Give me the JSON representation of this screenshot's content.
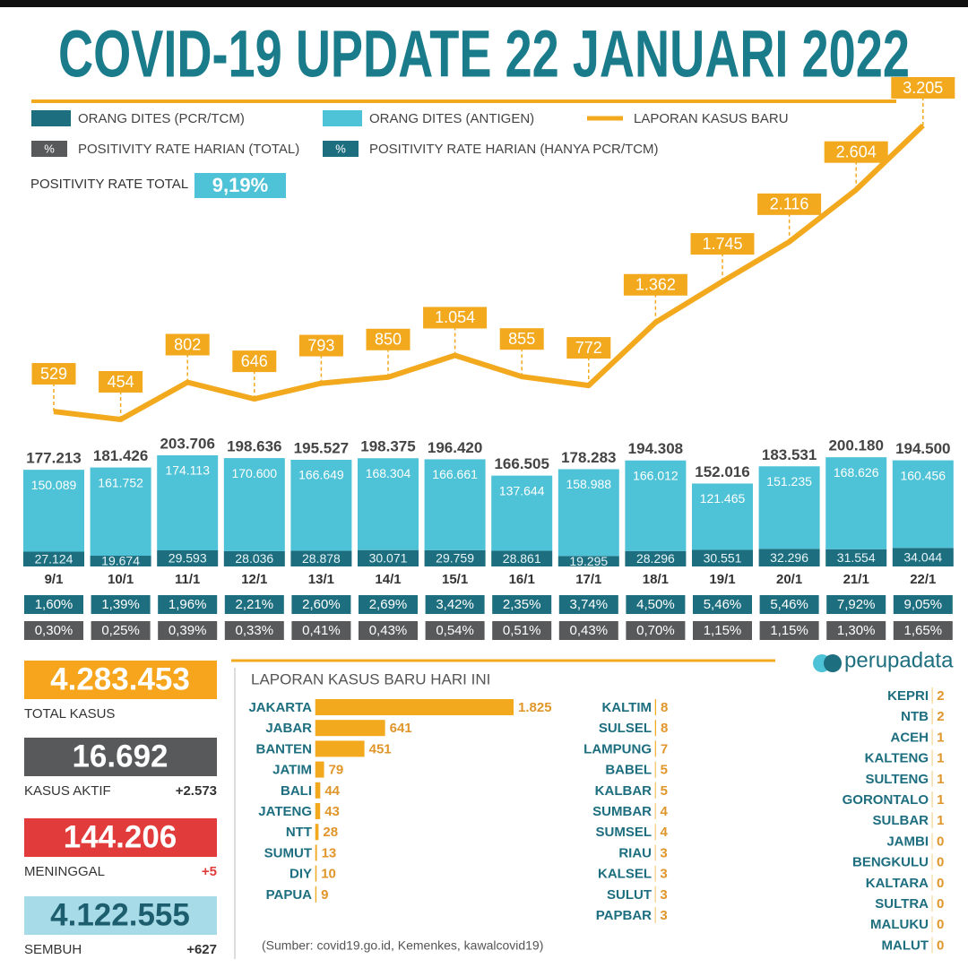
{
  "title": "COVID-19 UPDATE 22 JANUARI 2022",
  "positivity_rate_total": {
    "label": "POSITIVITY RATE TOTAL",
    "value": 9.19,
    "value_label": "9,19%"
  },
  "stats": [
    {
      "label": "TOTAL KASUS",
      "value": "4.283.453",
      "color": "#f6a51c"
    },
    {
      "label": "KASUS AKTIF",
      "value": "16.692",
      "change": "+2.573",
      "color": "#58595b"
    },
    {
      "label": "MENINGGAL",
      "value": "144.206",
      "change": "+5",
      "color": "#e23b3b"
    },
    {
      "label": "SEMBUH",
      "value": "4.122.555",
      "change": "+627",
      "color": "#a8dbe8"
    }
  ],
  "brand": "perupadata",
  "source": "(Sumber: covid19.go.id, Kemenkes, kawalcovid19)",
  "chart_data": [
    {
      "type": "combo",
      "categories": [
        "9/1",
        "10/1",
        "11/1",
        "12/1",
        "13/1",
        "14/1",
        "15/1",
        "16/1",
        "17/1",
        "18/1",
        "19/1",
        "20/1",
        "21/1",
        "22/1"
      ],
      "totals": {
        "values": [
          177213,
          181426,
          203706,
          198636,
          195527,
          198375,
          196420,
          166505,
          178283,
          194308,
          152016,
          183531,
          200180,
          194500
        ],
        "value_labels": [
          "177.213",
          "181.426",
          "203.706",
          "198.636",
          "195.527",
          "198.375",
          "196.420",
          "166.505",
          "178.283",
          "194.308",
          "152.016",
          "183.531",
          "200.180",
          "194.500"
        ]
      },
      "series": [
        {
          "name": "ORANG DITES (PCR/TCM)",
          "type": "bar",
          "color": "#1d6e7f",
          "values": [
            27124,
            19674,
            29593,
            28036,
            28878,
            30071,
            29759,
            28861,
            19295,
            28296,
            30551,
            32296,
            31554,
            34044
          ],
          "value_labels": [
            "27.124",
            "19.674",
            "29.593",
            "28.036",
            "28.878",
            "30.071",
            "29.759",
            "28.861",
            "19.295",
            "28.296",
            "30.551",
            "32.296",
            "31.554",
            "34.044"
          ]
        },
        {
          "name": "ORANG DITES (ANTIGEN)",
          "type": "bar",
          "color": "#4ec2d6",
          "values": [
            150089,
            161752,
            174113,
            170600,
            166649,
            168304,
            166661,
            137644,
            158988,
            166012,
            121465,
            151235,
            168626,
            160456
          ],
          "value_labels": [
            "150.089",
            "161.752",
            "174.113",
            "170.600",
            "166.649",
            "168.304",
            "166.661",
            "137.644",
            "158.988",
            "166.012",
            "121.465",
            "151.235",
            "168.626",
            "160.456"
          ]
        },
        {
          "name": "LAPORAN KASUS BARU",
          "type": "line",
          "color": "#f2a91e",
          "values": [
            529,
            454,
            802,
            646,
            793,
            850,
            1054,
            855,
            772,
            1362,
            1745,
            2116,
            2604,
            3205
          ],
          "value_labels": [
            "529",
            "454",
            "802",
            "646",
            "793",
            "850",
            "1.054",
            "855",
            "772",
            "1.362",
            "1.745",
            "2.116",
            "2.604",
            "3.205"
          ]
        },
        {
          "name": "POSITIVITY RATE HARIAN (HANYA PCR/TCM)",
          "type": "label-box",
          "symbol": "%",
          "color": "#1d6e7f",
          "values": [
            1.6,
            1.39,
            1.96,
            2.21,
            2.6,
            2.69,
            3.42,
            2.35,
            3.74,
            4.5,
            5.46,
            5.46,
            7.92,
            9.05
          ],
          "value_labels": [
            "1,60%",
            "1,39%",
            "1,96%",
            "2,21%",
            "2,60%",
            "2,69%",
            "3,42%",
            "2,35%",
            "3,74%",
            "4,50%",
            "5,46%",
            "5,46%",
            "7,92%",
            "9,05%"
          ]
        },
        {
          "name": "POSITIVITY RATE HARIAN (TOTAL)",
          "type": "label-box",
          "symbol": "%",
          "color": "#58595b",
          "values": [
            0.3,
            0.25,
            0.39,
            0.33,
            0.41,
            0.43,
            0.54,
            0.51,
            0.43,
            0.7,
            1.15,
            1.15,
            1.3,
            1.65
          ],
          "value_labels": [
            "0,30%",
            "0,25%",
            "0,39%",
            "0,33%",
            "0,41%",
            "0,43%",
            "0,54%",
            "0,51%",
            "0,43%",
            "0,70%",
            "1,15%",
            "1,15%",
            "1,30%",
            "1,65%"
          ]
        }
      ]
    },
    {
      "type": "hbar",
      "title": "LAPORAN KASUS BARU HARI INI",
      "color": "#f2a91e",
      "categories": [
        "JAKARTA",
        "JABAR",
        "BANTEN",
        "JATIM",
        "BALI",
        "JATENG",
        "NTT",
        "SUMUT",
        "DIY",
        "PAPUA",
        "KALTIM",
        "SULSEL",
        "LAMPUNG",
        "BABEL",
        "KALBAR",
        "SUMBAR",
        "SUMSEL",
        "RIAU",
        "KALSEL",
        "SULUT",
        "PAPBAR",
        "KEPRI",
        "NTB",
        "ACEH",
        "KALTENG",
        "SULTENG",
        "GORONTALO",
        "SULBAR",
        "JAMBI",
        "BENGKULU",
        "KALTARA",
        "SULTRA",
        "MALUKU",
        "MALUT"
      ],
      "values": [
        1825,
        641,
        451,
        79,
        44,
        43,
        28,
        13,
        10,
        9,
        8,
        8,
        7,
        5,
        5,
        4,
        4,
        3,
        3,
        3,
        3,
        2,
        2,
        1,
        1,
        1,
        1,
        1,
        0,
        0,
        0,
        0,
        0,
        0
      ],
      "value_labels": [
        "1.825",
        "641",
        "451",
        "79",
        "44",
        "43",
        "28",
        "13",
        "10",
        "9",
        "8",
        "8",
        "7",
        "5",
        "5",
        "4",
        "4",
        "3",
        "3",
        "3",
        "3",
        "2",
        "2",
        "1",
        "1",
        "1",
        "1",
        "1",
        "0",
        "0",
        "0",
        "0",
        "0",
        "0"
      ]
    }
  ]
}
